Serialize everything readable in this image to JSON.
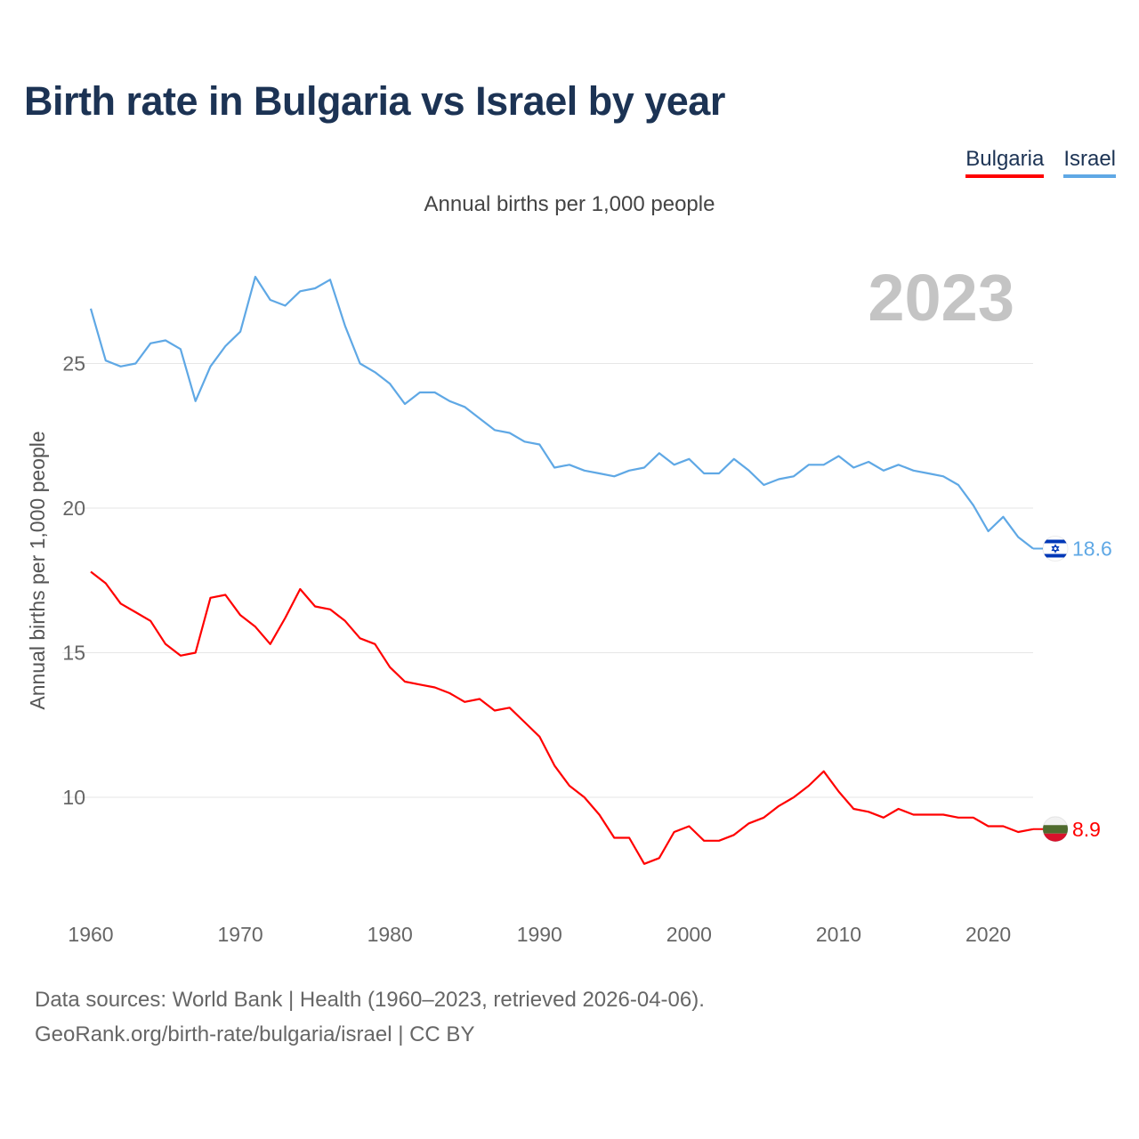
{
  "title": "Birth rate in Bulgaria vs Israel by year",
  "subtitle": "Annual births per 1,000 people",
  "year_label": "2023",
  "legend": [
    {
      "label": "Bulgaria",
      "color": "#ff0000"
    },
    {
      "label": "Israel",
      "color": "#5fa8e5"
    }
  ],
  "footer": {
    "line1": "Data sources: World Bank | Health (1960–2023, retrieved 2026-04-06).",
    "line2": "GeoRank.org/birth-rate/bulgaria/israel | CC BY"
  },
  "chart_data": {
    "type": "line",
    "title": "Birth rate in Bulgaria vs Israel by year",
    "xlabel": "",
    "ylabel": "Annual births per 1,000 people",
    "xlim": [
      1960,
      2023
    ],
    "ylim": [
      6.5,
      28.5
    ],
    "grid": true,
    "x_ticks": [
      1960,
      1970,
      1980,
      1990,
      2000,
      2010,
      2020
    ],
    "y_ticks": [
      10,
      15,
      20,
      25
    ],
    "x": [
      1960,
      1961,
      1962,
      1963,
      1964,
      1965,
      1966,
      1967,
      1968,
      1969,
      1970,
      1971,
      1972,
      1973,
      1974,
      1975,
      1976,
      1977,
      1978,
      1979,
      1980,
      1981,
      1982,
      1983,
      1984,
      1985,
      1986,
      1987,
      1988,
      1989,
      1990,
      1991,
      1992,
      1993,
      1994,
      1995,
      1996,
      1997,
      1998,
      1999,
      2000,
      2001,
      2002,
      2003,
      2004,
      2005,
      2006,
      2007,
      2008,
      2009,
      2010,
      2011,
      2012,
      2013,
      2014,
      2015,
      2016,
      2017,
      2018,
      2019,
      2020,
      2021,
      2022,
      2023
    ],
    "series": [
      {
        "name": "Israel",
        "color": "#5fa8e5",
        "flag": "israel-flag",
        "end_label": "18.6",
        "values": [
          26.9,
          25.1,
          24.9,
          25.0,
          25.7,
          25.8,
          25.5,
          23.7,
          24.9,
          25.6,
          26.1,
          28.0,
          27.2,
          27.0,
          27.5,
          27.6,
          27.9,
          26.3,
          25.0,
          24.7,
          24.3,
          23.6,
          24.0,
          24.0,
          23.7,
          23.5,
          23.1,
          22.7,
          22.6,
          22.3,
          22.2,
          21.4,
          21.5,
          21.3,
          21.2,
          21.1,
          21.3,
          21.4,
          21.9,
          21.5,
          21.7,
          21.2,
          21.2,
          21.7,
          21.3,
          20.8,
          21.0,
          21.1,
          21.5,
          21.5,
          21.8,
          21.4,
          21.6,
          21.3,
          21.5,
          21.3,
          21.2,
          21.1,
          20.8,
          20.1,
          19.2,
          19.7,
          19.0,
          18.6
        ]
      },
      {
        "name": "Bulgaria",
        "color": "#ff0000",
        "flag": "bulgaria-flag",
        "end_label": "8.9",
        "values": [
          17.8,
          17.4,
          16.7,
          16.4,
          16.1,
          15.3,
          14.9,
          15.0,
          16.9,
          17.0,
          16.3,
          15.9,
          15.3,
          16.2,
          17.2,
          16.6,
          16.5,
          16.1,
          15.5,
          15.3,
          14.5,
          14.0,
          13.9,
          13.8,
          13.6,
          13.3,
          13.4,
          13.0,
          13.1,
          12.6,
          12.1,
          11.1,
          10.4,
          10.0,
          9.4,
          8.6,
          8.6,
          7.7,
          7.9,
          8.8,
          9.0,
          8.5,
          8.5,
          8.7,
          9.1,
          9.3,
          9.7,
          10.0,
          10.4,
          10.9,
          10.2,
          9.6,
          9.5,
          9.3,
          9.6,
          9.4,
          9.4,
          9.4,
          9.3,
          9.3,
          9.0,
          9.0,
          8.8,
          8.9
        ]
      }
    ]
  }
}
